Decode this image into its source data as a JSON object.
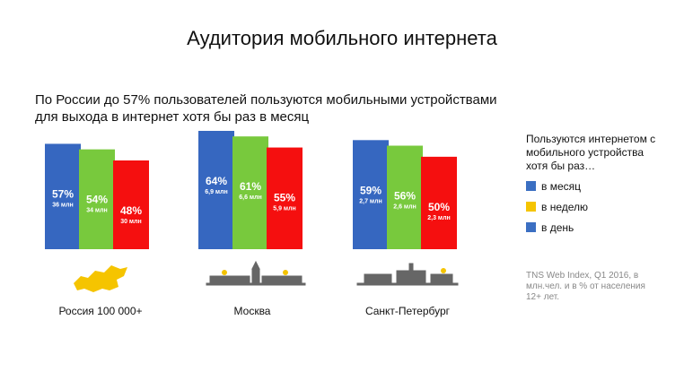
{
  "title": "Аудитория мобильного интернета",
  "subtitle": "По России до 57% пользователей пользуются мобильными устройствами для выхода в интернет хотя бы раз в месяц",
  "legend": {
    "title": "Пользуются интернетом с мобильного устройства хотя бы раз…",
    "items": [
      {
        "label": "в месяц",
        "color": "#3b6fc2"
      },
      {
        "label": "в неделю",
        "color": "#f5c400"
      },
      {
        "label": "в день",
        "color": "#3b6fc2"
      }
    ]
  },
  "source": "TNS Web Index, Q1 2016, в млн.чел. и в % от населения 12+ лет.",
  "chart_data": {
    "type": "bar",
    "categories": [
      "Россия 100 000+",
      "Москва",
      "Санкт-Петербург"
    ],
    "ylim": [
      0,
      70
    ],
    "series": [
      {
        "name": "в месяц",
        "color": "#3667c0",
        "values": [
          57,
          64,
          59
        ],
        "labels": [
          "57%",
          "64%",
          "59%"
        ],
        "sublabels": [
          "36 млн",
          "6,9 млн",
          "2,7 млн"
        ]
      },
      {
        "name": "в неделю",
        "color": "#78c93d",
        "values": [
          54,
          61,
          56
        ],
        "labels": [
          "54%",
          "61%",
          "56%"
        ],
        "sublabels": [
          "34 млн",
          "6,6 млн",
          "2,6 млн"
        ]
      },
      {
        "name": "в день",
        "color": "#f50f0f",
        "values": [
          48,
          55,
          50
        ],
        "labels": [
          "48%",
          "55%",
          "50%"
        ],
        "sublabels": [
          "30 млн",
          "5,9 млн",
          "2,3 млн"
        ]
      }
    ]
  }
}
